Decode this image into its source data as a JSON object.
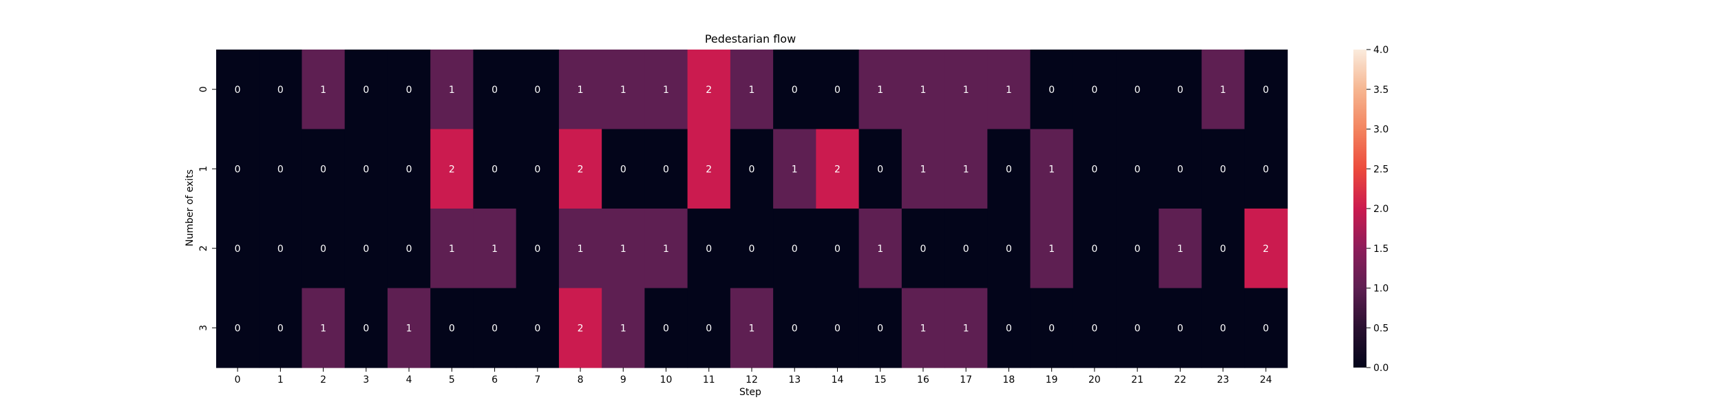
{
  "chart_data": {
    "type": "heatmap",
    "title": "Pedestarian flow",
    "xlabel": "Step",
    "ylabel": "Number of exits",
    "x_categories": [
      "0",
      "1",
      "2",
      "3",
      "4",
      "5",
      "6",
      "7",
      "8",
      "9",
      "10",
      "11",
      "12",
      "13",
      "14",
      "15",
      "16",
      "17",
      "18",
      "19",
      "20",
      "21",
      "22",
      "23",
      "24"
    ],
    "y_categories": [
      "0",
      "1",
      "2",
      "3"
    ],
    "values": [
      [
        0,
        0,
        1,
        0,
        0,
        1,
        0,
        0,
        1,
        1,
        1,
        2,
        1,
        0,
        0,
        1,
        1,
        1,
        1,
        0,
        0,
        0,
        0,
        1,
        0
      ],
      [
        0,
        0,
        0,
        0,
        0,
        2,
        0,
        0,
        2,
        0,
        0,
        2,
        0,
        1,
        2,
        0,
        1,
        1,
        0,
        1,
        0,
        0,
        0,
        0,
        0
      ],
      [
        0,
        0,
        0,
        0,
        0,
        1,
        1,
        0,
        1,
        1,
        1,
        0,
        0,
        0,
        0,
        1,
        0,
        0,
        0,
        1,
        0,
        0,
        1,
        0,
        2
      ],
      [
        0,
        0,
        1,
        0,
        1,
        0,
        0,
        0,
        2,
        1,
        0,
        0,
        1,
        0,
        0,
        0,
        1,
        1,
        0,
        0,
        0,
        0,
        0,
        0,
        0
      ]
    ],
    "annotate": true,
    "colorbar": {
      "vmin": 0,
      "vmax": 4,
      "ticks": [
        "0.0",
        "0.5",
        "1.0",
        "1.5",
        "2.0",
        "2.5",
        "3.0",
        "3.5",
        "4.0"
      ],
      "colormap": "rocket"
    },
    "cell_colors": {
      "0": "#03051a",
      "1": "#5e1f52",
      "2": "#cb1b4f"
    },
    "annotation_color": "#ffffff"
  }
}
